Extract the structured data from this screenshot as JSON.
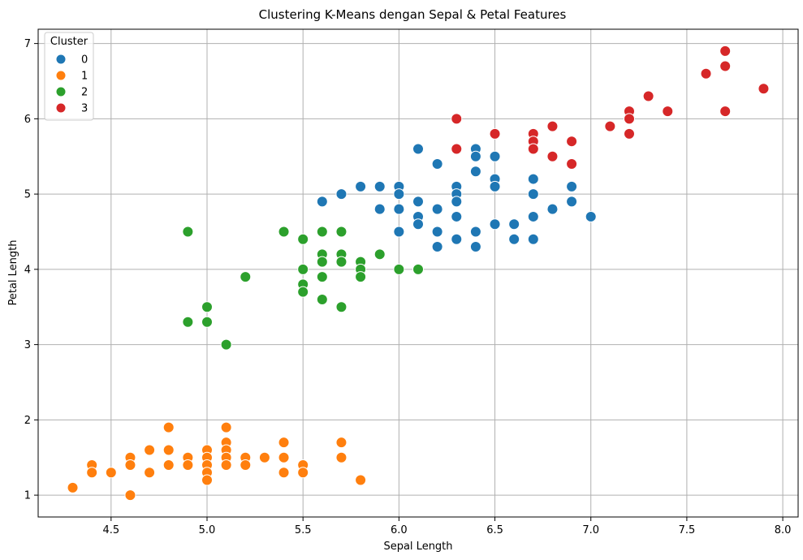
{
  "chart_data": {
    "type": "scatter",
    "title": "Clustering K-Means dengan Sepal & Petal Features",
    "xlabel": "Sepal Length",
    "ylabel": "Petal Length",
    "xlim": [
      4.12,
      8.08
    ],
    "ylim": [
      0.71,
      7.19
    ],
    "xticks": [
      "4.5",
      "5.0",
      "5.5",
      "6.0",
      "6.5",
      "7.0",
      "7.5",
      "8.0"
    ],
    "yticks": [
      "1",
      "2",
      "3",
      "4",
      "5",
      "6",
      "7"
    ],
    "grid": true,
    "legend": {
      "title": "Cluster",
      "position": "top-left"
    },
    "series": [
      {
        "name": "0",
        "color": "#1f77b4",
        "points": [
          [
            5.6,
            4.9
          ],
          [
            5.7,
            5.0
          ],
          [
            5.8,
            5.1
          ],
          [
            5.9,
            5.1
          ],
          [
            5.9,
            4.8
          ],
          [
            6.0,
            5.1
          ],
          [
            6.0,
            5.0
          ],
          [
            6.0,
            4.8
          ],
          [
            6.0,
            4.5
          ],
          [
            6.1,
            5.6
          ],
          [
            6.1,
            4.9
          ],
          [
            6.1,
            4.7
          ],
          [
            6.1,
            4.6
          ],
          [
            6.2,
            5.4
          ],
          [
            6.2,
            4.8
          ],
          [
            6.2,
            4.5
          ],
          [
            6.2,
            4.3
          ],
          [
            6.3,
            5.1
          ],
          [
            6.3,
            5.0
          ],
          [
            6.3,
            4.9
          ],
          [
            6.3,
            4.7
          ],
          [
            6.3,
            4.4
          ],
          [
            6.4,
            5.6
          ],
          [
            6.4,
            5.5
          ],
          [
            6.4,
            5.3
          ],
          [
            6.4,
            4.5
          ],
          [
            6.4,
            4.3
          ],
          [
            6.5,
            5.5
          ],
          [
            6.5,
            5.2
          ],
          [
            6.5,
            5.1
          ],
          [
            6.5,
            4.6
          ],
          [
            6.6,
            4.6
          ],
          [
            6.6,
            4.4
          ],
          [
            6.7,
            5.2
          ],
          [
            6.7,
            5.0
          ],
          [
            6.7,
            4.7
          ],
          [
            6.7,
            4.4
          ],
          [
            6.8,
            4.8
          ],
          [
            6.9,
            5.1
          ],
          [
            6.9,
            4.9
          ],
          [
            7.0,
            4.7
          ]
        ]
      },
      {
        "name": "1",
        "color": "#ff7f0e",
        "points": [
          [
            4.3,
            1.1
          ],
          [
            4.4,
            1.4
          ],
          [
            4.4,
            1.3
          ],
          [
            4.5,
            1.3
          ],
          [
            4.6,
            1.5
          ],
          [
            4.6,
            1.4
          ],
          [
            4.6,
            1.0
          ],
          [
            4.7,
            1.6
          ],
          [
            4.7,
            1.3
          ],
          [
            4.8,
            1.9
          ],
          [
            4.8,
            1.6
          ],
          [
            4.8,
            1.4
          ],
          [
            4.9,
            1.5
          ],
          [
            4.9,
            1.4
          ],
          [
            5.0,
            1.6
          ],
          [
            5.0,
            1.5
          ],
          [
            5.0,
            1.4
          ],
          [
            5.0,
            1.3
          ],
          [
            5.0,
            1.2
          ],
          [
            5.1,
            1.9
          ],
          [
            5.1,
            1.7
          ],
          [
            5.1,
            1.6
          ],
          [
            5.1,
            1.5
          ],
          [
            5.1,
            1.4
          ],
          [
            5.2,
            1.5
          ],
          [
            5.2,
            1.4
          ],
          [
            5.3,
            1.5
          ],
          [
            5.4,
            1.7
          ],
          [
            5.4,
            1.5
          ],
          [
            5.4,
            1.3
          ],
          [
            5.5,
            1.4
          ],
          [
            5.5,
            1.3
          ],
          [
            5.7,
            1.7
          ],
          [
            5.7,
            1.5
          ],
          [
            5.8,
            1.2
          ]
        ]
      },
      {
        "name": "2",
        "color": "#2ca02c",
        "points": [
          [
            4.9,
            4.5
          ],
          [
            4.9,
            3.3
          ],
          [
            5.0,
            3.5
          ],
          [
            5.0,
            3.3
          ],
          [
            5.1,
            3.0
          ],
          [
            5.2,
            3.9
          ],
          [
            5.4,
            4.5
          ],
          [
            5.5,
            4.4
          ],
          [
            5.5,
            4.0
          ],
          [
            5.5,
            3.8
          ],
          [
            5.5,
            3.7
          ],
          [
            5.6,
            4.5
          ],
          [
            5.6,
            4.2
          ],
          [
            5.6,
            4.1
          ],
          [
            5.6,
            3.9
          ],
          [
            5.6,
            3.6
          ],
          [
            5.7,
            4.5
          ],
          [
            5.7,
            4.2
          ],
          [
            5.7,
            4.1
          ],
          [
            5.7,
            3.5
          ],
          [
            5.8,
            4.1
          ],
          [
            5.8,
            4.0
          ],
          [
            5.8,
            3.9
          ],
          [
            5.9,
            4.2
          ],
          [
            6.0,
            4.0
          ],
          [
            6.1,
            4.0
          ]
        ]
      },
      {
        "name": "3",
        "color": "#d62728",
        "points": [
          [
            6.3,
            6.0
          ],
          [
            6.3,
            5.6
          ],
          [
            6.5,
            5.8
          ],
          [
            6.7,
            5.8
          ],
          [
            6.7,
            5.7
          ],
          [
            6.7,
            5.6
          ],
          [
            6.8,
            5.9
          ],
          [
            6.8,
            5.5
          ],
          [
            6.9,
            5.7
          ],
          [
            6.9,
            5.4
          ],
          [
            7.1,
            5.9
          ],
          [
            7.2,
            6.1
          ],
          [
            7.2,
            6.0
          ],
          [
            7.2,
            5.8
          ],
          [
            7.3,
            6.3
          ],
          [
            7.4,
            6.1
          ],
          [
            7.6,
            6.6
          ],
          [
            7.7,
            6.9
          ],
          [
            7.7,
            6.7
          ],
          [
            7.7,
            6.1
          ],
          [
            7.9,
            6.4
          ]
        ]
      }
    ]
  }
}
